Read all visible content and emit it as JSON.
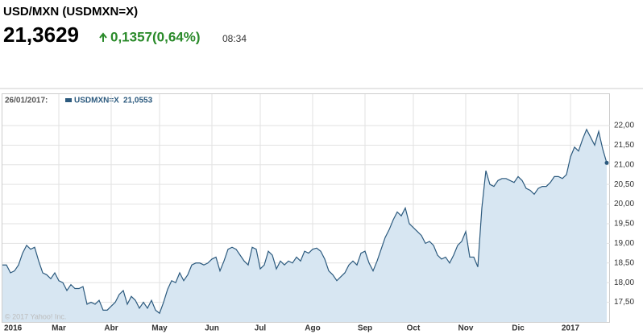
{
  "header": {
    "title": "USD/MXN (USDMXN=X)",
    "price": "21,3629",
    "change": "0,1357(0,64%)",
    "time": "08:34"
  },
  "chart_data": {
    "type": "line",
    "legend_date": "26/01/2017:",
    "legend_value": "21,0553",
    "copyright": "© 2017 Yahoo! Inc.",
    "categories": [
      "2016",
      null,
      null,
      null,
      null,
      null,
      null,
      null,
      null,
      null,
      null,
      null,
      null,
      null,
      "Mar",
      null,
      null,
      null,
      null,
      null,
      null,
      null,
      null,
      null,
      null,
      null,
      null,
      "Abr",
      null,
      null,
      null,
      null,
      null,
      null,
      null,
      null,
      null,
      null,
      null,
      "May",
      null,
      null,
      null,
      null,
      null,
      null,
      null,
      null,
      null,
      null,
      null,
      null,
      "Jun",
      null,
      null,
      null,
      null,
      null,
      null,
      null,
      null,
      null,
      null,
      null,
      "Jul",
      null,
      null,
      null,
      null,
      null,
      null,
      null,
      null,
      null,
      null,
      null,
      null,
      "Ago",
      null,
      null,
      null,
      null,
      null,
      null,
      null,
      null,
      null,
      null,
      null,
      null,
      "Sep",
      null,
      null,
      null,
      null,
      null,
      null,
      null,
      null,
      null,
      null,
      null,
      "Oct",
      null,
      null,
      null,
      null,
      null,
      null,
      null,
      null,
      null,
      null,
      null,
      null,
      "Nov",
      null,
      null,
      null,
      null,
      null,
      null,
      null,
      null,
      null,
      null,
      null,
      null,
      "Dic",
      null,
      null,
      null,
      null,
      null,
      null,
      null,
      null,
      null,
      null,
      null,
      null,
      "2017",
      null,
      null,
      null,
      null,
      null,
      null,
      null,
      null,
      null
    ],
    "series": [
      {
        "name": "USDMXN=X",
        "color": "#2c5a7e",
        "fill": "#d7e6f2",
        "values": [
          18.45,
          18.45,
          18.25,
          18.3,
          18.45,
          18.75,
          18.95,
          18.85,
          18.9,
          18.55,
          18.25,
          18.2,
          18.1,
          18.25,
          18.05,
          18.0,
          17.8,
          17.95,
          17.85,
          17.85,
          17.9,
          17.45,
          17.5,
          17.45,
          17.55,
          17.3,
          17.3,
          17.4,
          17.5,
          17.7,
          17.8,
          17.45,
          17.65,
          17.55,
          17.35,
          17.5,
          17.35,
          17.55,
          17.3,
          17.22,
          17.5,
          17.83,
          18.05,
          18.0,
          18.25,
          18.05,
          18.2,
          18.45,
          18.5,
          18.5,
          18.45,
          18.5,
          18.6,
          18.65,
          18.3,
          18.55,
          18.85,
          18.9,
          18.85,
          18.7,
          18.55,
          18.45,
          18.9,
          18.85,
          18.35,
          18.45,
          18.8,
          18.7,
          18.35,
          18.55,
          18.45,
          18.55,
          18.5,
          18.65,
          18.55,
          18.8,
          18.75,
          18.85,
          18.88,
          18.8,
          18.6,
          18.3,
          18.2,
          18.05,
          18.15,
          18.25,
          18.45,
          18.55,
          18.45,
          18.75,
          18.8,
          18.5,
          18.3,
          18.55,
          18.85,
          19.15,
          19.35,
          19.6,
          19.8,
          19.7,
          19.9,
          19.5,
          19.4,
          19.3,
          19.2,
          19.0,
          19.05,
          18.95,
          18.7,
          18.6,
          18.65,
          18.5,
          18.7,
          18.95,
          19.05,
          19.3,
          18.65,
          18.65,
          18.4,
          19.9,
          20.85,
          20.5,
          20.45,
          20.6,
          20.65,
          20.65,
          20.6,
          20.55,
          20.7,
          20.6,
          20.4,
          20.35,
          20.25,
          20.4,
          20.45,
          20.45,
          20.55,
          20.7,
          20.7,
          20.65,
          20.75,
          21.2,
          21.45,
          21.35,
          21.65,
          21.9,
          21.7,
          21.5,
          21.85,
          21.4,
          21.05
        ]
      }
    ],
    "ylim": [
      17.0,
      22.47
    ],
    "yticks": [
      {
        "value": 17.5,
        "label": "17,50"
      },
      {
        "value": 18,
        "label": "18,00"
      },
      {
        "value": 18.5,
        "label": "18,50"
      },
      {
        "value": 19,
        "label": "19,00"
      },
      {
        "value": 19.5,
        "label": "19,50"
      },
      {
        "value": 20,
        "label": "20,00"
      },
      {
        "value": 20.5,
        "label": "20,50"
      },
      {
        "value": 21,
        "label": "21,00"
      },
      {
        "value": 21.5,
        "label": "21,50"
      },
      {
        "value": 22,
        "label": "22,00"
      }
    ],
    "grid": true
  }
}
